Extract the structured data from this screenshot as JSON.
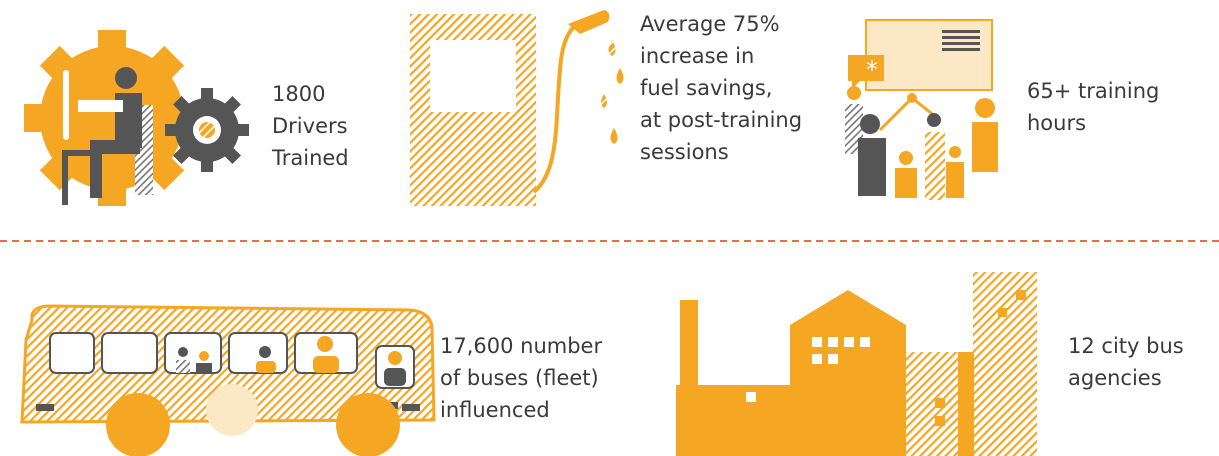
{
  "items": [
    {
      "lines": [
        "1800",
        "Drivers",
        "Trained"
      ]
    },
    {
      "lines": [
        "Average 75%",
        "increase in",
        "fuel savings,",
        "at post-training",
        "sessions"
      ]
    },
    {
      "lines": [
        "65+ training",
        "hours"
      ]
    },
    {
      "lines": [
        "17,600 number",
        "of buses (fleet)",
        "influenced"
      ]
    },
    {
      "lines": [
        "12 city bus",
        "agencies"
      ]
    }
  ]
}
